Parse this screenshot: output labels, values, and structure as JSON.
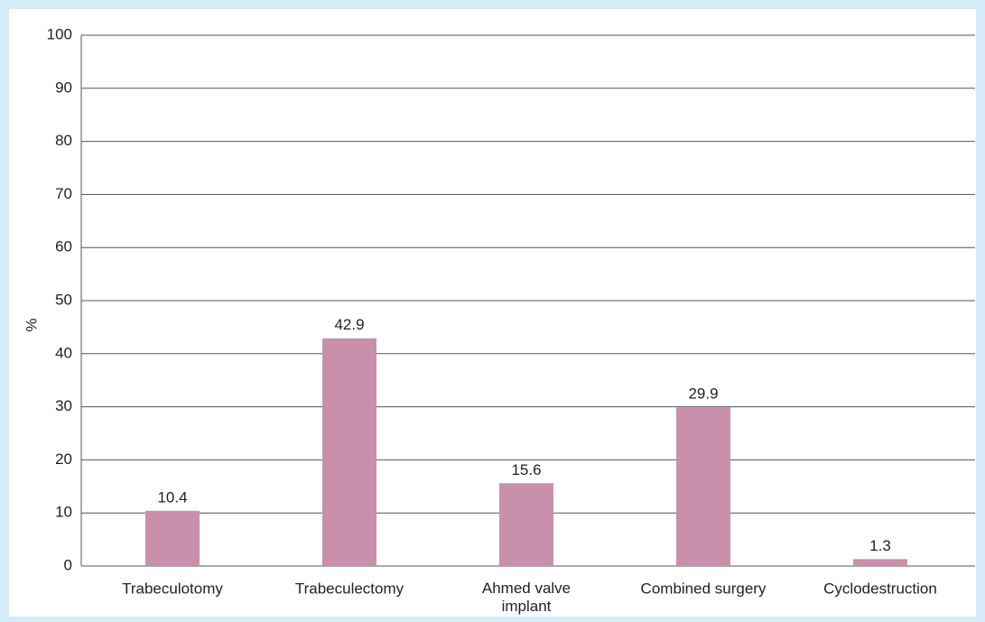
{
  "chart_data": {
    "type": "bar",
    "y_label": "%",
    "categories": [
      "Trabeculotomy",
      "Trabeculectomy",
      "Ahmed valve implant",
      "Combined surgery",
      "Cyclodestruction"
    ],
    "values": [
      10.4,
      42.9,
      15.6,
      29.9,
      1.3
    ],
    "color": "#c98fab",
    "ylim": [
      0,
      100
    ],
    "yticks": [
      0,
      10,
      20,
      30,
      40,
      50,
      60,
      70,
      80,
      90,
      100
    ],
    "grid": true
  }
}
